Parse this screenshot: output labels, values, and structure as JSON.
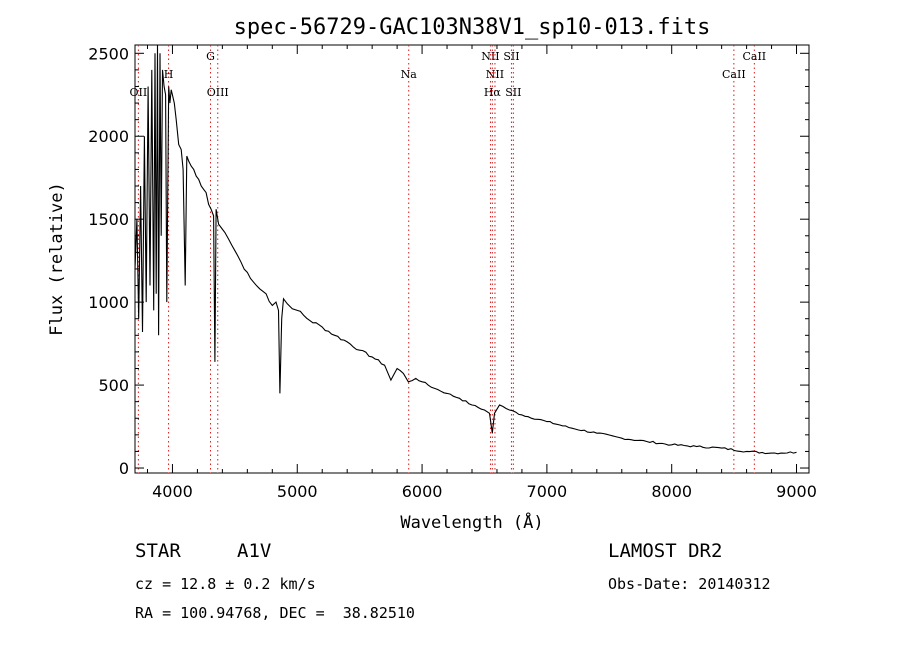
{
  "chart_data": {
    "type": "line",
    "title": "spec-56729-GAC103N38V1_sp10-013.fits",
    "xlabel": "Wavelength (Å)",
    "ylabel": "Flux (relative)",
    "xlim": [
      3700,
      9100
    ],
    "ylim": [
      -30,
      2550
    ],
    "xticks": [
      4000,
      5000,
      6000,
      7000,
      8000,
      9000
    ],
    "yticks": [
      0,
      500,
      1000,
      1500,
      2000,
      2500
    ],
    "grid": false,
    "series": [
      {
        "x": [
          3700,
          3715,
          3730,
          3745,
          3760,
          3775,
          3790,
          3805,
          3820,
          3835,
          3850,
          3860,
          3870,
          3880,
          3889,
          3900,
          3910,
          3920,
          3933,
          3945,
          3955,
          3970,
          3980,
          3990,
          4000,
          4015,
          4030,
          4050,
          4070,
          4085,
          4102,
          4115,
          4130,
          4150,
          4170,
          4190,
          4210,
          4230,
          4250,
          4270,
          4290,
          4310,
          4330,
          4340,
          4350,
          4370,
          4390,
          4420,
          4450,
          4500,
          4550,
          4600,
          4650,
          4700,
          4750,
          4800,
          4830,
          4850,
          4861,
          4875,
          4890,
          4920,
          4960,
          5000,
          5100,
          5200,
          5300,
          5400,
          5500,
          5600,
          5700,
          5750,
          5800,
          5850,
          5890,
          5950,
          6000,
          6100,
          6200,
          6300,
          6400,
          6500,
          6540,
          6563,
          6580,
          6620,
          6700,
          6800,
          7000,
          7200,
          7400,
          7600,
          7800,
          8000,
          8200,
          8400,
          8600,
          8800,
          9000
        ],
        "values": [
          1200,
          1500,
          900,
          1700,
          820,
          2000,
          1000,
          2300,
          1100,
          2400,
          950,
          2500,
          1050,
          2550,
          800,
          2500,
          1400,
          2400,
          2300,
          2250,
          1000,
          2300,
          2200,
          2280,
          2250,
          2200,
          2100,
          1950,
          1920,
          1800,
          1100,
          1880,
          1850,
          1820,
          1800,
          1760,
          1740,
          1700,
          1680,
          1660,
          1590,
          1560,
          1520,
          640,
          1560,
          1470,
          1450,
          1420,
          1380,
          1310,
          1240,
          1180,
          1120,
          1080,
          1050,
          980,
          1000,
          950,
          450,
          900,
          1020,
          990,
          960,
          950,
          890,
          850,
          800,
          760,
          710,
          670,
          620,
          530,
          600,
          570,
          520,
          540,
          520,
          480,
          450,
          420,
          380,
          350,
          330,
          210,
          330,
          380,
          350,
          320,
          280,
          240,
          210,
          180,
          160,
          140,
          130,
          120,
          100,
          90,
          95
        ]
      }
    ],
    "lines": [
      {
        "name": "OII",
        "x": 3727,
        "row": 2
      },
      {
        "name": "H",
        "x": 3969,
        "row": 1
      },
      {
        "name": "G",
        "x": 4305,
        "row": 0
      },
      {
        "name": "OIII",
        "x": 4363,
        "row": 2
      },
      {
        "name": "Na",
        "x": 5893,
        "row": 1
      },
      {
        "name": "NII",
        "x": 6548,
        "row": 0
      },
      {
        "name": "NII",
        "x": 6584,
        "row": 1
      },
      {
        "name": "Hα",
        "x": 6563,
        "row": 2
      },
      {
        "name": "SII",
        "x": 6716,
        "row": 0
      },
      {
        "name": "SII",
        "x": 6731,
        "row": 2
      },
      {
        "name": "CaII",
        "x": 8498,
        "row": 1
      },
      {
        "name": "CaII",
        "x": 8662,
        "row": 0
      }
    ]
  },
  "info": {
    "class_label": "STAR",
    "subclass": "A1V",
    "cz": "cz = 12.8 ± 0.2 km/s",
    "radec": "RA = 100.94768, DEC =  38.82510",
    "survey": "LAMOST DR2",
    "obs_date": "Obs-Date: 20140312"
  },
  "colors": {
    "axis": "#000000",
    "spectrum": "#000000",
    "line_marker": "#d81b1b"
  }
}
